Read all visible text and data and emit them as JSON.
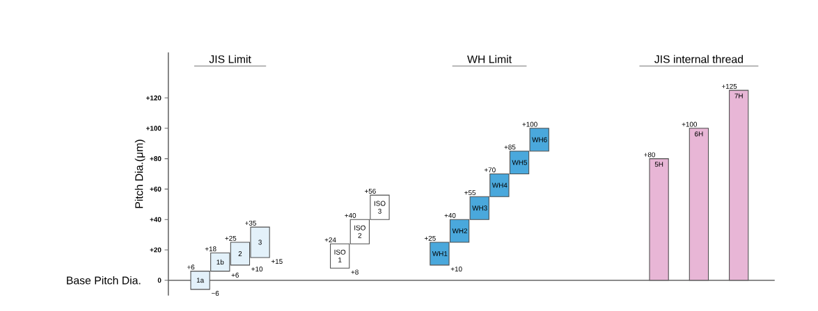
{
  "chart_data": {
    "type": "bar",
    "ylabel": "Pitch Dia.(μm)",
    "categories": [
      "1a",
      "1b",
      "2",
      "3",
      null,
      null,
      null,
      "ISO 1",
      "ISO 2",
      "ISO 3",
      null,
      null,
      "WH1",
      "WH2",
      "WH3",
      "WH4",
      "WH5",
      "WH6",
      null,
      null,
      null,
      null,
      null,
      "5H",
      null,
      "6H",
      null,
      "7H"
    ],
    "series": [
      {
        "color": "#e3f1fa",
        "base": [
          -6,
          6,
          10,
          15,
          null,
          null,
          null,
          null,
          null,
          null,
          null,
          null,
          null,
          null,
          null,
          null,
          null,
          null,
          null,
          null,
          null,
          null,
          null,
          null,
          null,
          null,
          null,
          null
        ],
        "values": [
          12,
          12,
          15,
          20,
          null,
          null,
          null,
          null,
          null,
          null,
          null,
          null,
          null,
          null,
          null,
          null,
          null,
          null,
          null,
          null,
          null,
          null,
          null,
          null,
          null,
          null,
          null,
          null
        ]
      },
      {
        "color": "#ffffff",
        "base": [
          null,
          null,
          null,
          null,
          null,
          null,
          null,
          8,
          24,
          40,
          null,
          null,
          null,
          null,
          null,
          null,
          null,
          null,
          null,
          null,
          null,
          null,
          null,
          null,
          null,
          null,
          null,
          null
        ],
        "values": [
          null,
          null,
          null,
          null,
          null,
          null,
          null,
          16,
          16,
          16,
          null,
          null,
          null,
          null,
          null,
          null,
          null,
          null,
          null,
          null,
          null,
          null,
          null,
          null,
          null,
          null,
          null,
          null
        ]
      },
      {
        "color": "#4aa8dc",
        "base": [
          null,
          null,
          null,
          null,
          null,
          null,
          null,
          null,
          null,
          null,
          null,
          null,
          10,
          25,
          40,
          55,
          70,
          85,
          null,
          null,
          null,
          null,
          null,
          null,
          null,
          null,
          null,
          null
        ],
        "values": [
          null,
          null,
          null,
          null,
          null,
          null,
          null,
          null,
          null,
          null,
          null,
          null,
          15,
          15,
          15,
          15,
          15,
          15,
          null,
          null,
          null,
          null,
          null,
          null,
          null,
          null,
          null,
          null
        ]
      },
      {
        "color": "#e8b6d6",
        "base": [
          null,
          null,
          null,
          null,
          null,
          null,
          null,
          null,
          null,
          null,
          null,
          null,
          null,
          null,
          null,
          null,
          null,
          null,
          null,
          null,
          null,
          null,
          null,
          0,
          null,
          0,
          null,
          0
        ],
        "values": [
          null,
          null,
          null,
          null,
          null,
          null,
          null,
          null,
          null,
          null,
          null,
          null,
          null,
          null,
          null,
          null,
          null,
          null,
          null,
          null,
          null,
          null,
          null,
          80,
          null,
          100,
          null,
          125
        ]
      }
    ],
    "ylim": [
      -10,
      150
    ],
    "yticks": [
      {
        "value": 0,
        "label": "0"
      },
      {
        "value": 20,
        "label": "+20"
      },
      {
        "value": 40,
        "label": "+40"
      },
      {
        "value": 60,
        "label": "+60"
      },
      {
        "value": 80,
        "label": "+80"
      },
      {
        "value": 100,
        "label": "+100"
      },
      {
        "value": 120,
        "label": "+120"
      }
    ],
    "annotations": [
      "Base Pitch Dia.",
      "JIS Limit",
      "WH Limit",
      "JIS internal thread",
      {
        "text": "+6",
        "x": "1a",
        "y": 6
      },
      {
        "text": "−6",
        "x": "1a",
        "y": -6
      },
      {
        "text": "+18",
        "x": "1b",
        "y": 18
      },
      {
        "text": "+6",
        "x": "1b",
        "y": 6
      },
      {
        "text": "+25",
        "x": "2",
        "y": 25
      },
      {
        "text": "+10",
        "x": "2",
        "y": 10
      },
      {
        "text": "+35",
        "x": "3",
        "y": 35
      },
      {
        "text": "+15",
        "x": "3",
        "y": 15
      },
      {
        "text": "+24",
        "x": "ISO 1",
        "y": 24
      },
      {
        "text": "+8",
        "x": "ISO 1",
        "y": 8
      },
      {
        "text": "+40",
        "x": "ISO 2",
        "y": 40
      },
      {
        "text": "+56",
        "x": "ISO 3",
        "y": 56
      },
      {
        "text": "+25",
        "x": "WH1",
        "y": 25
      },
      {
        "text": "+10",
        "x": "WH1",
        "y": 10
      },
      {
        "text": "+40",
        "x": "WH2",
        "y": 40
      },
      {
        "text": "+55",
        "x": "WH3",
        "y": 55
      },
      {
        "text": "+70",
        "x": "WH4",
        "y": 70
      },
      {
        "text": "+85",
        "x": "WH5",
        "y": 85
      },
      {
        "text": "+100",
        "x": "WH6",
        "y": 100
      },
      {
        "text": "+80",
        "x": "5H",
        "y": 80
      },
      {
        "text": "+100",
        "x": "6H",
        "y": 100
      },
      {
        "text": "+125",
        "x": "7H",
        "y": 125
      }
    ]
  }
}
